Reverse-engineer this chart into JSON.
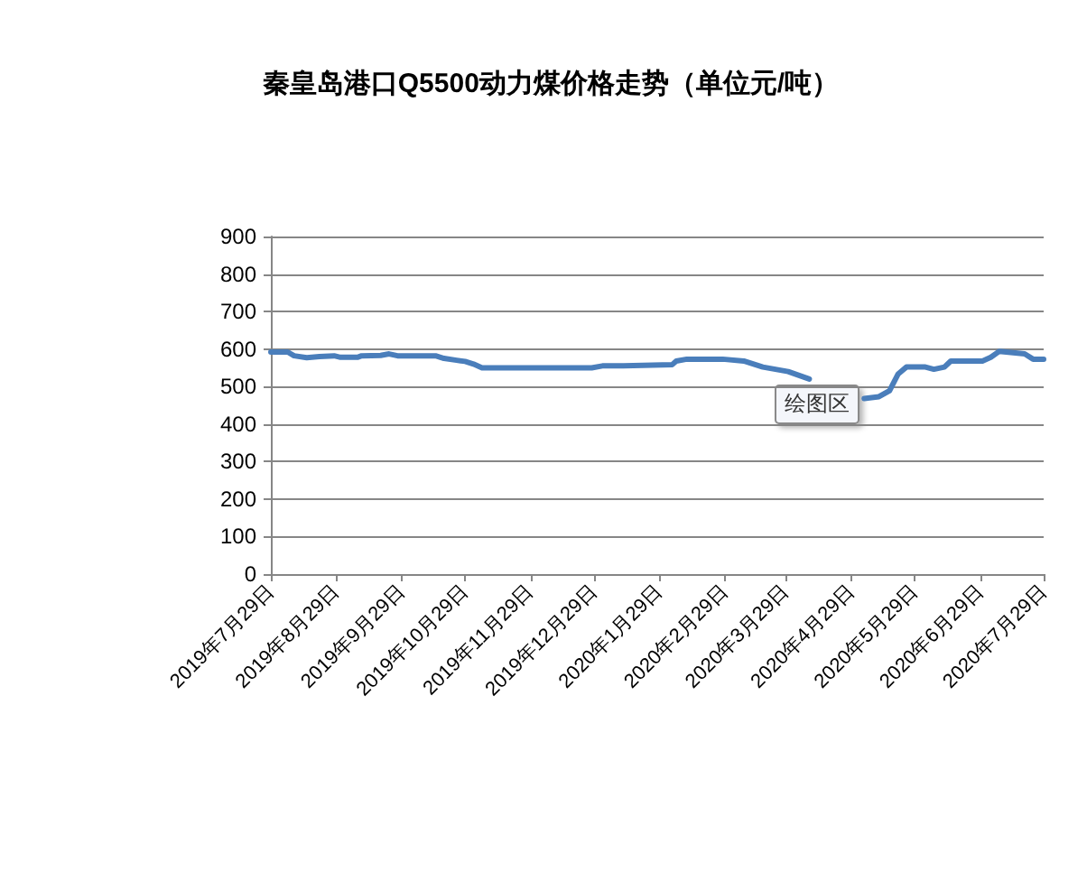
{
  "chart_data": {
    "type": "line",
    "title": "秦皇岛港口Q5500动力煤价格走势（单位元/吨）",
    "x": [
      "2019-07-29",
      "2019-08-06",
      "2019-08-09",
      "2019-08-15",
      "2019-08-21",
      "2019-08-28",
      "2019-08-31",
      "2019-09-08",
      "2019-09-10",
      "2019-09-19",
      "2019-09-23",
      "2019-09-27",
      "2019-10-15",
      "2019-10-19",
      "2019-10-25",
      "2019-10-29",
      "2019-11-02",
      "2019-11-06",
      "2019-12-28",
      "2020-01-02",
      "2020-01-12",
      "2020-02-04",
      "2020-02-06",
      "2020-02-11",
      "2020-02-28",
      "2020-03-09",
      "2020-03-18",
      "2020-03-30",
      "2020-04-09",
      "2020-04-20",
      "2020-05-05",
      "2020-05-12",
      "2020-05-17",
      "2020-05-21",
      "2020-05-25",
      "2020-06-03",
      "2020-06-07",
      "2020-06-12",
      "2020-06-15",
      "2020-06-30",
      "2020-07-04",
      "2020-07-08",
      "2020-07-20",
      "2020-07-24",
      "2020-07-29"
    ],
    "series": [
      {
        "color": "#4a7ebb",
        "values": [
          592,
          592,
          582,
          577,
          580,
          582,
          578,
          578,
          582,
          583,
          587,
          582,
          582,
          575,
          570,
          567,
          560,
          550,
          550,
          555,
          555,
          558,
          568,
          573,
          573,
          568,
          552,
          540,
          520,
          null,
          468,
          473,
          489,
          533,
          552,
          552,
          546,
          552,
          568,
          568,
          578,
          594,
          587,
          573,
          573
        ]
      }
    ],
    "xlim": [
      "2019-07-29",
      "2020-07-29"
    ],
    "xticks": [
      {
        "value": "2019-07-29",
        "label": "2019年7月29日"
      },
      {
        "value": "2019-08-29",
        "label": "2019年8月29日"
      },
      {
        "value": "2019-09-29",
        "label": "2019年9月29日"
      },
      {
        "value": "2019-10-29",
        "label": "2019年10月29日"
      },
      {
        "value": "2019-11-29",
        "label": "2019年11月29日"
      },
      {
        "value": "2019-12-29",
        "label": "2019年12月29日"
      },
      {
        "value": "2020-01-29",
        "label": "2020年1月29日"
      },
      {
        "value": "2020-02-29",
        "label": "2020年2月29日"
      },
      {
        "value": "2020-03-29",
        "label": "2020年3月29日"
      },
      {
        "value": "2020-04-29",
        "label": "2020年4月29日"
      },
      {
        "value": "2020-05-29",
        "label": "2020年5月29日"
      },
      {
        "value": "2020-06-29",
        "label": "2020年6月29日"
      },
      {
        "value": "2020-07-29",
        "label": "2020年7月29日"
      }
    ],
    "ylim": [
      0,
      900
    ],
    "yticks": [
      0,
      100,
      200,
      300,
      400,
      500,
      600,
      700,
      800,
      900
    ],
    "grid": "y",
    "marker": "none",
    "line_style": "solid",
    "annotations": [
      "绘图区"
    ]
  }
}
